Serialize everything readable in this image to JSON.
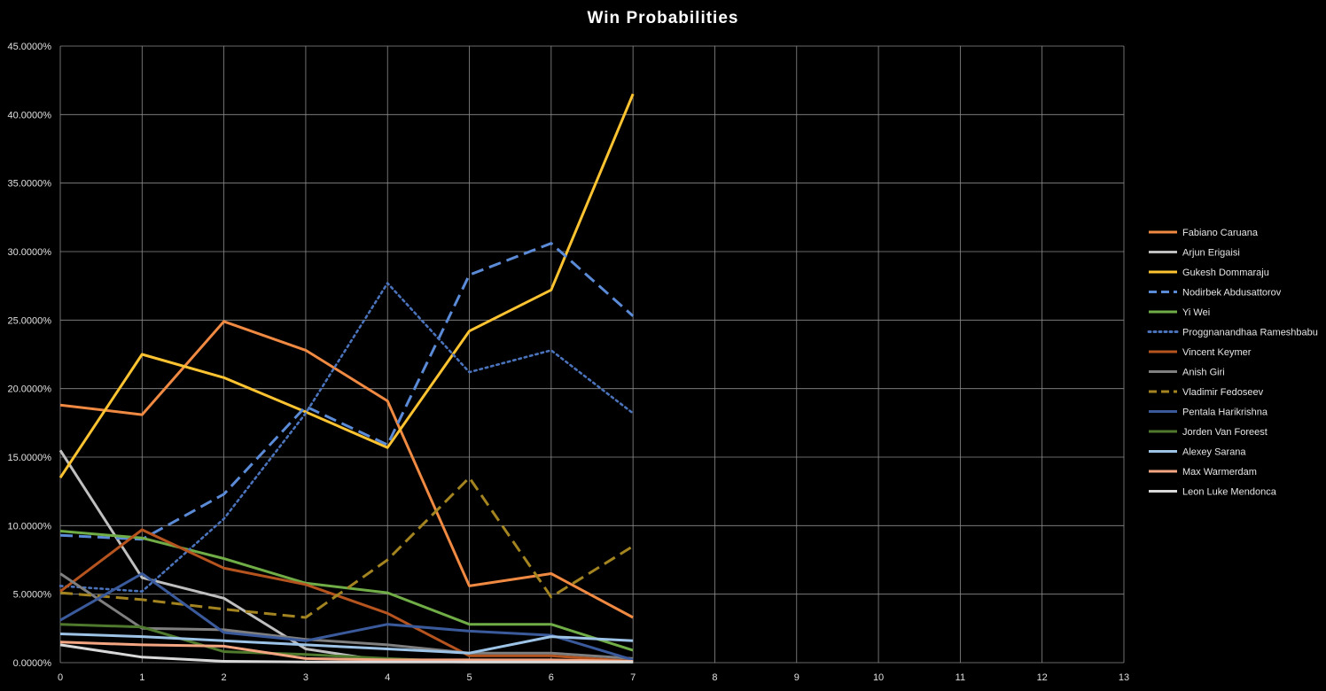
{
  "chart_data": {
    "type": "line",
    "title": "Win Probabilities",
    "xlabel": "",
    "ylabel": "",
    "x": [
      0,
      1,
      2,
      3,
      4,
      5,
      6,
      7
    ],
    "xlim": [
      0,
      13
    ],
    "x_ticks": [
      "0",
      "1",
      "2",
      "3",
      "4",
      "5",
      "6",
      "7",
      "8",
      "9",
      "10",
      "11",
      "12",
      "13"
    ],
    "ylim": [
      0,
      45
    ],
    "y_ticks": [
      "0.0000%",
      "5.0000%",
      "10.0000%",
      "15.0000%",
      "20.0000%",
      "25.0000%",
      "30.0000%",
      "35.0000%",
      "40.0000%",
      "45.0000%"
    ],
    "y_unit": "percent",
    "grid": true,
    "background": "#000000",
    "legend_position": "right",
    "series": [
      {
        "name": "Fabiano Caruana",
        "color": "#F08A43",
        "dash": "solid",
        "values": [
          18.8,
          18.1,
          24.9,
          22.8,
          19.1,
          5.6,
          6.5,
          3.3
        ]
      },
      {
        "name": "Arjun Erigaisi",
        "color": "#BFBFBF",
        "dash": "solid",
        "values": [
          15.5,
          6.2,
          4.7,
          1.0,
          0.1,
          0.05,
          0.05,
          0.05
        ]
      },
      {
        "name": "Gukesh Dommaraju",
        "color": "#FDC331",
        "dash": "solid",
        "values": [
          13.5,
          22.5,
          20.8,
          18.3,
          15.7,
          24.2,
          27.2,
          41.5
        ]
      },
      {
        "name": "Nodirbek Abdusattorov",
        "color": "#5B8BD6",
        "dash": "dash",
        "values": [
          9.3,
          9.0,
          12.3,
          18.7,
          15.9,
          28.3,
          30.6,
          25.3
        ]
      },
      {
        "name": "Yi Wei",
        "color": "#70AD47",
        "dash": "solid",
        "values": [
          9.6,
          9.1,
          7.6,
          5.8,
          5.1,
          2.8,
          2.8,
          0.9
        ]
      },
      {
        "name": "Proggnanandhaa Rameshbabu",
        "color": "#4A73BB",
        "dash": "dot",
        "values": [
          5.6,
          5.2,
          10.5,
          18.2,
          27.7,
          21.2,
          22.8,
          18.2
        ]
      },
      {
        "name": "Vincent Keymer",
        "color": "#B5541F",
        "dash": "solid",
        "values": [
          5.2,
          9.7,
          6.9,
          5.7,
          3.6,
          0.5,
          0.5,
          0.1
        ]
      },
      {
        "name": "Anish Giri",
        "color": "#7F7F7F",
        "dash": "solid",
        "values": [
          6.5,
          2.5,
          2.4,
          1.7,
          1.3,
          0.7,
          0.7,
          0.3
        ]
      },
      {
        "name": "Vladimir Fedoseev",
        "color": "#A38420",
        "dash": "dash",
        "values": [
          5.1,
          4.6,
          3.9,
          3.3,
          7.5,
          13.5,
          4.8,
          8.5
        ]
      },
      {
        "name": "Pentala Harikrishna",
        "color": "#3A5A9C",
        "dash": "solid",
        "values": [
          3.1,
          6.5,
          2.2,
          1.6,
          2.8,
          2.3,
          2.0,
          0.2
        ]
      },
      {
        "name": "Jorden Van Foreest",
        "color": "#4F7A2E",
        "dash": "solid",
        "values": [
          2.8,
          2.6,
          0.8,
          0.6,
          0.3,
          0.05,
          0.05,
          0.05
        ]
      },
      {
        "name": "Alexey Sarana",
        "color": "#9DC3E6",
        "dash": "solid",
        "values": [
          2.1,
          1.9,
          1.6,
          1.3,
          1.0,
          0.7,
          1.9,
          1.6
        ]
      },
      {
        "name": "Max Warmerdam",
        "color": "#F4A582",
        "dash": "solid",
        "values": [
          1.5,
          1.3,
          1.2,
          0.3,
          0.2,
          0.2,
          0.2,
          0.1
        ]
      },
      {
        "name": "Leon Luke Mendonca",
        "color": "#D9D9D9",
        "dash": "solid",
        "values": [
          1.3,
          0.4,
          0.1,
          0.05,
          0.05,
          0.05,
          0.05,
          0.05
        ]
      }
    ]
  }
}
